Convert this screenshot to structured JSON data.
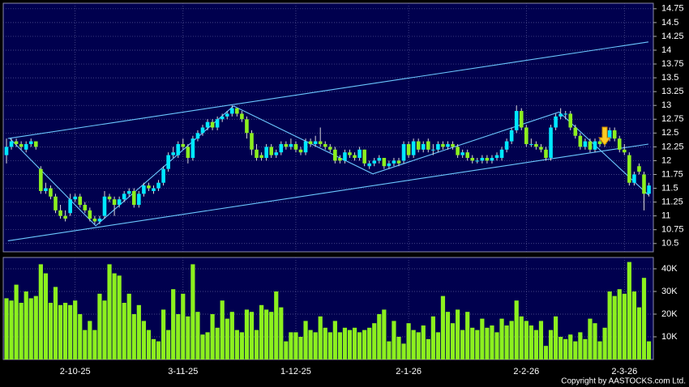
{
  "chart_data": {
    "type": "candlestick",
    "copyright": "Copyright by AASTOCKS.com Ltd.",
    "up_color": "#00e8ff",
    "down_color": "#8cf01e",
    "volume_color": "#8cf01e",
    "line_color": "#6cc8ff",
    "grid": true,
    "categories": [
      null,
      null,
      null,
      null,
      null,
      null,
      null,
      null,
      null,
      null,
      null,
      null,
      null,
      null,
      "2-10-25",
      null,
      null,
      null,
      null,
      null,
      null,
      null,
      null,
      null,
      null,
      null,
      null,
      null,
      null,
      null,
      null,
      null,
      null,
      null,
      null,
      null,
      "3-11-25",
      null,
      null,
      null,
      null,
      null,
      null,
      null,
      null,
      null,
      null,
      null,
      null,
      null,
      null,
      null,
      null,
      null,
      null,
      null,
      null,
      null,
      null,
      "1-12-25",
      null,
      null,
      null,
      null,
      null,
      null,
      null,
      null,
      null,
      null,
      null,
      null,
      null,
      null,
      null,
      null,
      null,
      null,
      null,
      null,
      null,
      null,
      "2-1-26",
      null,
      null,
      null,
      null,
      null,
      null,
      null,
      null,
      null,
      null,
      null,
      null,
      null,
      null,
      null,
      null,
      null,
      null,
      null,
      null,
      null,
      null,
      null,
      "2-2-26",
      null,
      null,
      null,
      null,
      null,
      null,
      null,
      null,
      null,
      null,
      null,
      null,
      null,
      null,
      null,
      null,
      null,
      null,
      null,
      "2-3-26",
      null,
      null,
      null,
      null,
      null
    ],
    "candles": [
      [
        12.1,
        12.4,
        11.95,
        12.25
      ],
      [
        12.25,
        12.4,
        12.2,
        12.35
      ],
      [
        12.35,
        12.4,
        12.25,
        12.3
      ],
      [
        12.3,
        12.35,
        12.2,
        12.25
      ],
      [
        12.2,
        12.35,
        12.15,
        12.3
      ],
      [
        12.3,
        12.4,
        12.25,
        12.35
      ],
      [
        12.35,
        12.35,
        12.2,
        12.25
      ],
      [
        11.85,
        11.9,
        11.4,
        11.45
      ],
      [
        11.45,
        11.6,
        11.4,
        11.5
      ],
      [
        11.5,
        11.55,
        11.3,
        11.35
      ],
      [
        11.35,
        11.4,
        11.05,
        11.1
      ],
      [
        11.1,
        11.2,
        10.95,
        11.0
      ],
      [
        11.0,
        11.1,
        10.9,
        10.95
      ],
      [
        11.05,
        11.4,
        11.0,
        11.3
      ],
      [
        11.3,
        11.4,
        11.25,
        11.35
      ],
      [
        11.35,
        11.4,
        11.15,
        11.2
      ],
      [
        11.2,
        11.25,
        11.05,
        11.1
      ],
      [
        11.1,
        11.15,
        10.9,
        10.95
      ],
      [
        10.95,
        11.0,
        10.85,
        10.9
      ],
      [
        10.9,
        11.0,
        10.85,
        10.95
      ],
      [
        11.0,
        11.45,
        10.95,
        11.35
      ],
      [
        11.35,
        11.4,
        11.25,
        11.3
      ],
      [
        11.3,
        11.35,
        11.0,
        11.2
      ],
      [
        11.2,
        11.35,
        11.15,
        11.3
      ],
      [
        11.3,
        11.45,
        11.25,
        11.4
      ],
      [
        11.4,
        11.5,
        11.35,
        11.45
      ],
      [
        11.45,
        11.5,
        11.15,
        11.2
      ],
      [
        11.2,
        11.45,
        11.15,
        11.4
      ],
      [
        11.4,
        11.6,
        11.35,
        11.55
      ],
      [
        11.55,
        11.6,
        11.45,
        11.5
      ],
      [
        11.45,
        11.55,
        11.4,
        11.5
      ],
      [
        11.5,
        11.65,
        11.45,
        11.6
      ],
      [
        11.6,
        11.9,
        11.55,
        11.85
      ],
      [
        11.85,
        12.15,
        11.8,
        12.1
      ],
      [
        12.1,
        12.25,
        12.05,
        12.15
      ],
      [
        12.1,
        12.35,
        12.05,
        12.3
      ],
      [
        12.3,
        12.4,
        12.2,
        12.25
      ],
      [
        12.25,
        12.3,
        11.95,
        12.05
      ],
      [
        12.05,
        12.45,
        12.0,
        12.4
      ],
      [
        12.4,
        12.55,
        12.35,
        12.5
      ],
      [
        12.5,
        12.65,
        12.45,
        12.6
      ],
      [
        12.6,
        12.75,
        12.55,
        12.7
      ],
      [
        12.7,
        12.75,
        12.55,
        12.6
      ],
      [
        12.6,
        12.8,
        12.55,
        12.75
      ],
      [
        12.75,
        12.85,
        12.7,
        12.8
      ],
      [
        12.8,
        12.9,
        12.75,
        12.85
      ],
      [
        12.85,
        13.0,
        12.8,
        12.95
      ],
      [
        12.95,
        12.95,
        12.8,
        12.85
      ],
      [
        12.85,
        12.9,
        12.7,
        12.75
      ],
      [
        12.75,
        12.8,
        12.4,
        12.5
      ],
      [
        12.5,
        12.55,
        12.1,
        12.2
      ],
      [
        12.2,
        12.3,
        12.0,
        12.05
      ],
      [
        12.1,
        12.15,
        12.0,
        12.05
      ],
      [
        12.05,
        12.3,
        12.0,
        12.25
      ],
      [
        12.25,
        12.3,
        12.05,
        12.1
      ],
      [
        12.1,
        12.2,
        12.05,
        12.15
      ],
      [
        12.15,
        12.35,
        12.1,
        12.3
      ],
      [
        12.3,
        12.35,
        12.2,
        12.25
      ],
      [
        12.25,
        12.4,
        12.2,
        12.3
      ],
      [
        12.3,
        12.35,
        12.15,
        12.2
      ],
      [
        12.2,
        12.25,
        12.1,
        12.15
      ],
      [
        12.15,
        12.4,
        12.1,
        12.35
      ],
      [
        12.35,
        12.4,
        12.25,
        12.3
      ],
      [
        12.3,
        12.45,
        12.25,
        12.35
      ],
      [
        12.35,
        12.6,
        12.25,
        12.3
      ],
      [
        12.3,
        12.35,
        12.2,
        12.25
      ],
      [
        12.25,
        12.3,
        12.15,
        12.2
      ],
      [
        12.2,
        12.25,
        11.95,
        12.0
      ],
      [
        12.05,
        12.1,
        11.95,
        12.0
      ],
      [
        12.0,
        12.2,
        11.95,
        12.15
      ],
      [
        12.15,
        12.2,
        12.05,
        12.1
      ],
      [
        12.1,
        12.15,
        12.0,
        12.05
      ],
      [
        12.05,
        12.25,
        12.0,
        12.2
      ],
      [
        12.2,
        12.2,
        11.9,
        11.95
      ],
      [
        11.9,
        12.0,
        11.85,
        11.95
      ],
      [
        11.95,
        12.05,
        11.9,
        12.0
      ],
      [
        12.0,
        12.1,
        11.95,
        12.05
      ],
      [
        12.05,
        12.05,
        11.85,
        11.9
      ],
      [
        11.9,
        12.0,
        11.85,
        11.95
      ],
      [
        11.95,
        12.05,
        11.9,
        12.0
      ],
      [
        12.0,
        12.05,
        11.9,
        11.95
      ],
      [
        12.0,
        12.35,
        11.95,
        12.3
      ],
      [
        12.3,
        12.35,
        12.05,
        12.1
      ],
      [
        12.1,
        12.4,
        12.05,
        12.35
      ],
      [
        12.35,
        12.4,
        12.15,
        12.2
      ],
      [
        12.2,
        12.35,
        12.15,
        12.3
      ],
      [
        12.35,
        12.4,
        12.15,
        12.2
      ],
      [
        12.2,
        12.3,
        12.1,
        12.2
      ],
      [
        12.2,
        12.35,
        12.15,
        12.3
      ],
      [
        12.3,
        12.35,
        12.2,
        12.25
      ],
      [
        12.25,
        12.35,
        12.2,
        12.3
      ],
      [
        12.3,
        12.35,
        12.2,
        12.25
      ],
      [
        12.25,
        12.3,
        12.05,
        12.1
      ],
      [
        12.1,
        12.2,
        12.05,
        12.15
      ],
      [
        12.15,
        12.2,
        12.0,
        12.05
      ],
      [
        12.05,
        12.1,
        11.95,
        12.0
      ],
      [
        12.0,
        12.05,
        11.95,
        12.0
      ],
      [
        12.0,
        12.1,
        11.95,
        12.05
      ],
      [
        12.05,
        12.1,
        11.95,
        12.0
      ],
      [
        12.0,
        12.1,
        11.95,
        12.05
      ],
      [
        12.05,
        12.15,
        12.0,
        12.1
      ],
      [
        12.05,
        12.25,
        12.0,
        12.2
      ],
      [
        12.2,
        12.4,
        12.15,
        12.35
      ],
      [
        12.35,
        12.6,
        12.3,
        12.55
      ],
      [
        12.55,
        13.0,
        12.5,
        12.9
      ],
      [
        12.9,
        12.95,
        12.55,
        12.6
      ],
      [
        12.6,
        12.65,
        12.25,
        12.3
      ],
      [
        12.3,
        12.4,
        12.25,
        12.3
      ],
      [
        12.3,
        12.35,
        12.2,
        12.25
      ],
      [
        12.25,
        12.3,
        12.15,
        12.2
      ],
      [
        12.2,
        12.25,
        12.0,
        12.05
      ],
      [
        12.05,
        12.65,
        12.0,
        12.6
      ],
      [
        12.6,
        12.85,
        12.55,
        12.8
      ],
      [
        12.8,
        12.95,
        12.75,
        12.85
      ],
      [
        12.85,
        12.9,
        12.75,
        12.85
      ],
      [
        12.85,
        12.9,
        12.55,
        12.6
      ],
      [
        12.6,
        12.65,
        12.4,
        12.45
      ],
      [
        12.45,
        12.5,
        12.2,
        12.25
      ],
      [
        12.25,
        12.4,
        12.2,
        12.35
      ],
      [
        12.35,
        12.4,
        12.15,
        12.2
      ],
      [
        12.2,
        12.4,
        12.15,
        12.35
      ],
      [
        12.35,
        12.4,
        12.25,
        12.3
      ],
      [
        12.3,
        12.45,
        12.25,
        12.4
      ],
      [
        12.4,
        12.6,
        12.35,
        12.55
      ],
      [
        12.55,
        12.6,
        12.35,
        12.4
      ],
      [
        12.4,
        12.45,
        12.15,
        12.2
      ],
      [
        12.2,
        12.3,
        12.1,
        12.15
      ],
      [
        12.1,
        12.15,
        11.55,
        11.6
      ],
      [
        11.6,
        11.8,
        11.55,
        11.75
      ],
      [
        11.9,
        11.95,
        11.75,
        11.8
      ],
      [
        11.75,
        11.8,
        11.1,
        11.4
      ],
      [
        11.4,
        11.6,
        11.35,
        11.55
      ]
    ],
    "volume": [
      27000,
      26000,
      33000,
      25000,
      30000,
      27000,
      28000,
      42000,
      38000,
      25000,
      32000,
      24000,
      25000,
      24000,
      26000,
      20000,
      13000,
      17000,
      13000,
      29000,
      26000,
      42000,
      38000,
      37000,
      25000,
      29000,
      20000,
      24000,
      17000,
      13000,
      9000,
      8000,
      22000,
      13000,
      31000,
      20000,
      29000,
      19000,
      42000,
      21000,
      11000,
      12000,
      20000,
      14000,
      26000,
      18000,
      21000,
      13000,
      12000,
      22000,
      21000,
      13000,
      24000,
      22000,
      21000,
      30000,
      23000,
      8000,
      12000,
      12000,
      10000,
      17000,
      13000,
      12000,
      19000,
      14000,
      12000,
      17000,
      12000,
      14000,
      13000,
      14000,
      12000,
      13000,
      14000,
      16000,
      20000,
      22000,
      8000,
      17000,
      10000,
      7000,
      16000,
      13000,
      12000,
      15000,
      9000,
      19000,
      12000,
      28000,
      21000,
      16000,
      22000,
      13000,
      21000,
      14000,
      13000,
      18000,
      14000,
      15000,
      12000,
      18000,
      15000,
      17000,
      26000,
      19000,
      17000,
      15000,
      13000,
      17000,
      6000,
      13000,
      19000,
      10000,
      9000,
      11000,
      8000,
      12000,
      9000,
      18000,
      16000,
      8000,
      14000,
      30000,
      28000,
      31000,
      29000,
      43000,
      30000,
      23000,
      36000,
      8000
    ],
    "trendlines": [
      [
        [
          0.3,
          12.4
        ],
        [
          130.9,
          14.15
        ]
      ],
      [
        [
          0.3,
          10.55
        ],
        [
          130.9,
          12.3
        ]
      ],
      [
        [
          0.7,
          12.4
        ],
        [
          18.2,
          10.82
        ],
        [
          46.3,
          12.99
        ],
        [
          74.7,
          11.76
        ],
        [
          112.7,
          12.88
        ],
        [
          130.9,
          11.38
        ]
      ]
    ],
    "ylim": [
      10.35,
      14.85
    ],
    "yticks": [
      10.5,
      10.75,
      11,
      11.25,
      11.5,
      11.75,
      12,
      12.25,
      12.5,
      12.75,
      13,
      13.25,
      13.5,
      13.75,
      14,
      14.25,
      14.5,
      14.75
    ],
    "y2lim": [
      0,
      45000
    ],
    "y2ticks": [
      {
        "value": 10000,
        "label": "10K"
      },
      {
        "value": 20000,
        "label": "20K"
      },
      {
        "value": 30000,
        "label": "30K"
      },
      {
        "value": 40000,
        "label": "40K"
      }
    ]
  }
}
